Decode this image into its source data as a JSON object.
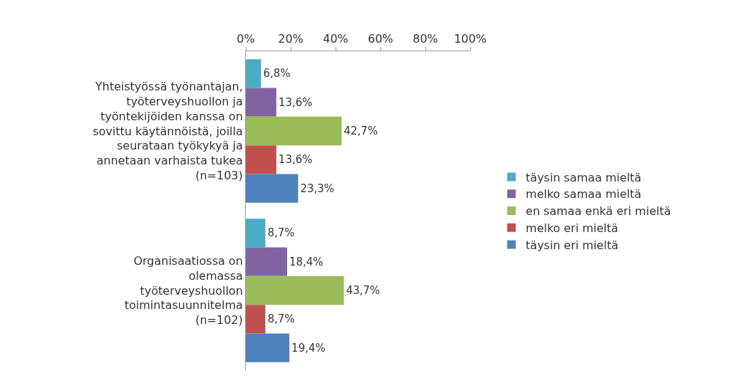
{
  "chart_data": {
    "type": "bar",
    "orientation": "horizontal",
    "categories": [
      "Yhteistyössä työnantajan,\ntyöterveyshuollon ja\ntyöntekijöiden kanssa on\nsovittu käytännöistä, joilla\nseurataan työkykyä ja\nannetaan varhaista tukea\n(n=103)",
      "Organisaatiossa on\nolemassa\ntyöterveyshuollon\ntoimintasuunnitelma\n(n=102)"
    ],
    "series": [
      {
        "name": "täysin samaa mieltä",
        "color": "#4bacc6",
        "values": [
          6.8,
          8.7
        ],
        "value_labels": [
          "6,8%",
          "8,7%"
        ]
      },
      {
        "name": "melko samaa mieltä",
        "color": "#8064a2",
        "values": [
          13.6,
          18.4
        ],
        "value_labels": [
          "13,6%",
          "18,4%"
        ]
      },
      {
        "name": "en samaa enkä eri mieltä",
        "color": "#9bbb59",
        "values": [
          42.7,
          43.7
        ],
        "value_labels": [
          "42,7%",
          "43,7%"
        ]
      },
      {
        "name": "melko eri mieltä",
        "color": "#c0504d",
        "values": [
          13.6,
          8.7
        ],
        "value_labels": [
          "13,6%",
          "8,7%"
        ]
      },
      {
        "name": "täysin eri mieltä",
        "color": "#4f81bd",
        "values": [
          23.3,
          19.4
        ],
        "value_labels": [
          "23,3%",
          "19,4%"
        ]
      }
    ],
    "xlim": [
      0,
      100
    ],
    "xticks": [
      {
        "value": 0,
        "label": "0%"
      },
      {
        "value": 20,
        "label": "20%"
      },
      {
        "value": 40,
        "label": "40%"
      },
      {
        "value": 60,
        "label": "60%"
      },
      {
        "value": 80,
        "label": "80%"
      },
      {
        "value": 100,
        "label": "100%"
      }
    ],
    "grid": false,
    "legend": "right"
  }
}
